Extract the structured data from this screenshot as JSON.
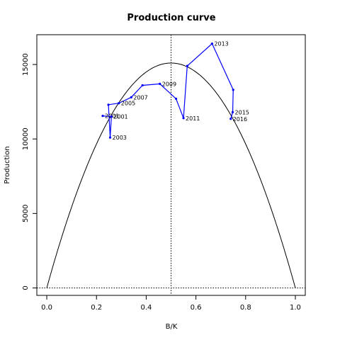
{
  "chart_data": {
    "type": "line",
    "title": "Production curve",
    "xlabel": "B/K",
    "ylabel": "Production",
    "xlim": [
      -0.04,
      1.04
    ],
    "ylim": [
      -500,
      17000
    ],
    "x_ticks": [
      0.0,
      0.2,
      0.4,
      0.6,
      0.8,
      1.0
    ],
    "x_tick_labels": [
      "0.0",
      "0.2",
      "0.4",
      "0.6",
      "0.8",
      "1.0"
    ],
    "y_ticks": [
      0,
      5000,
      10000,
      15000
    ],
    "y_tick_labels": [
      "0",
      "5000",
      "10000",
      "15000"
    ],
    "curve": {
      "color": "#000000",
      "max_production": 15100,
      "peak_x": 0.5
    },
    "reference_lines": {
      "vertical_x": 0.5,
      "horizontal_y": 0
    },
    "series": [
      {
        "color": "#0000ff",
        "points": [
          {
            "x": 0.225,
            "y": 11550,
            "label": "2001"
          },
          {
            "x": 0.26,
            "y": 11500,
            "label": "2001"
          },
          {
            "x": 0.255,
            "y": 10100,
            "label": "2003"
          },
          {
            "x": 0.248,
            "y": 12300,
            "label": ""
          },
          {
            "x": 0.29,
            "y": 12400,
            "label": "2005"
          },
          {
            "x": 0.34,
            "y": 12800,
            "label": "2007"
          },
          {
            "x": 0.385,
            "y": 13600,
            "label": ""
          },
          {
            "x": 0.455,
            "y": 13700,
            "label": "2009"
          },
          {
            "x": 0.52,
            "y": 12700,
            "label": ""
          },
          {
            "x": 0.55,
            "y": 11400,
            "label": "2011"
          },
          {
            "x": 0.565,
            "y": 14900,
            "label": ""
          },
          {
            "x": 0.665,
            "y": 16400,
            "label": "2013"
          },
          {
            "x": 0.75,
            "y": 13300,
            "label": ""
          },
          {
            "x": 0.748,
            "y": 11800,
            "label": "2015"
          },
          {
            "x": 0.74,
            "y": 11350,
            "label": "2016"
          }
        ]
      }
    ]
  }
}
